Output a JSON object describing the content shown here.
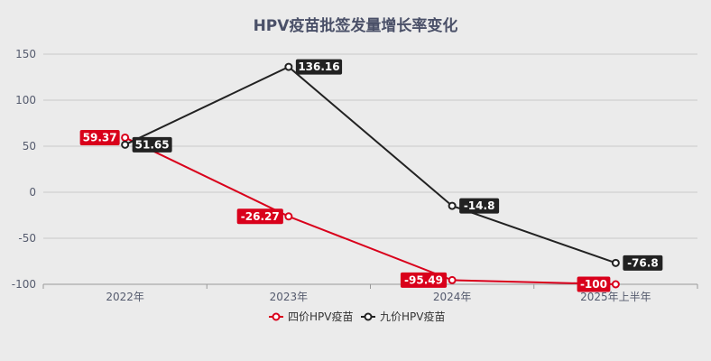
{
  "chart_data": {
    "type": "line",
    "title": "HPV疫苗批签发量增长率变化",
    "categories": [
      "2022年",
      "2023年",
      "2024年",
      "2025年上半年"
    ],
    "y_ticks": [
      "150",
      "100",
      "50",
      "0",
      "-50",
      "-100"
    ],
    "ylim": [
      -100,
      150
    ],
    "grid": true,
    "legend_position": "bottom",
    "series": [
      {
        "name": "四价HPV疫苗",
        "color": "#d9001b",
        "values": [
          59.37,
          -26.27,
          -95.49,
          -100
        ],
        "labels": [
          "59.37",
          "-26.27",
          "-95.49",
          "-100"
        ]
      },
      {
        "name": "九价HPV疫苗",
        "color": "#222222",
        "values": [
          51.65,
          136.16,
          -14.8,
          -76.8
        ],
        "labels": [
          "51.65",
          "136.16",
          "-14.8",
          "-76.8"
        ]
      }
    ]
  }
}
